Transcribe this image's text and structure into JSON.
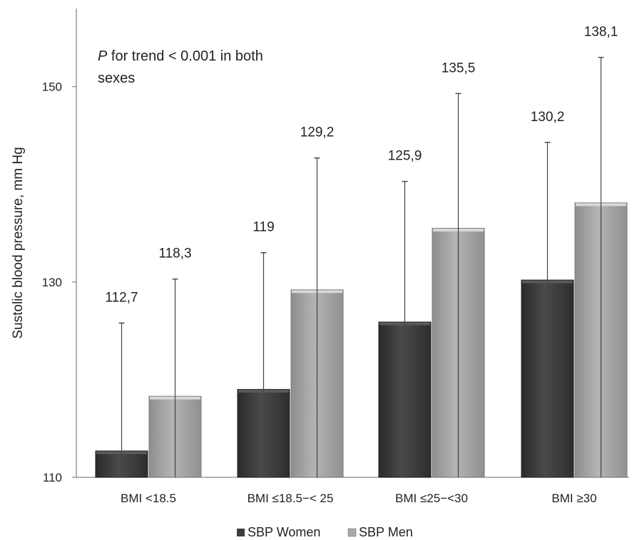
{
  "chart_data": {
    "type": "bar",
    "ylabel": "Sustolic blood pressure, mm Hg",
    "annotation_prefix": "P",
    "annotation_line1": " for trend < 0.001 in both",
    "annotation_line2": "sexes",
    "categories": [
      "BMI <18.5",
      "BMI ≤18.5−< 25",
      "BMI ≤25−<30",
      "BMI ≥30"
    ],
    "ylim": [
      110,
      158
    ],
    "yticks": [
      110,
      130,
      150
    ],
    "grid": false,
    "legend_position": "bottom",
    "series": [
      {
        "name": "SBP Women",
        "color": "#3d3d3d",
        "values": [
          112.7,
          119,
          125.9,
          130.2
        ],
        "labels": [
          "112,7",
          "119",
          "125,9",
          "130,2"
        ],
        "error_upper": [
          125.8,
          133,
          140.3,
          144.3
        ]
      },
      {
        "name": "SBP Men",
        "color": "#a8a8a8",
        "values": [
          118.3,
          129.2,
          135.5,
          138.1
        ],
        "labels": [
          "118,3",
          "129,2",
          "135,5",
          "138,1"
        ],
        "error_upper": [
          130.3,
          142.7,
          149.3,
          153
        ]
      }
    ]
  }
}
